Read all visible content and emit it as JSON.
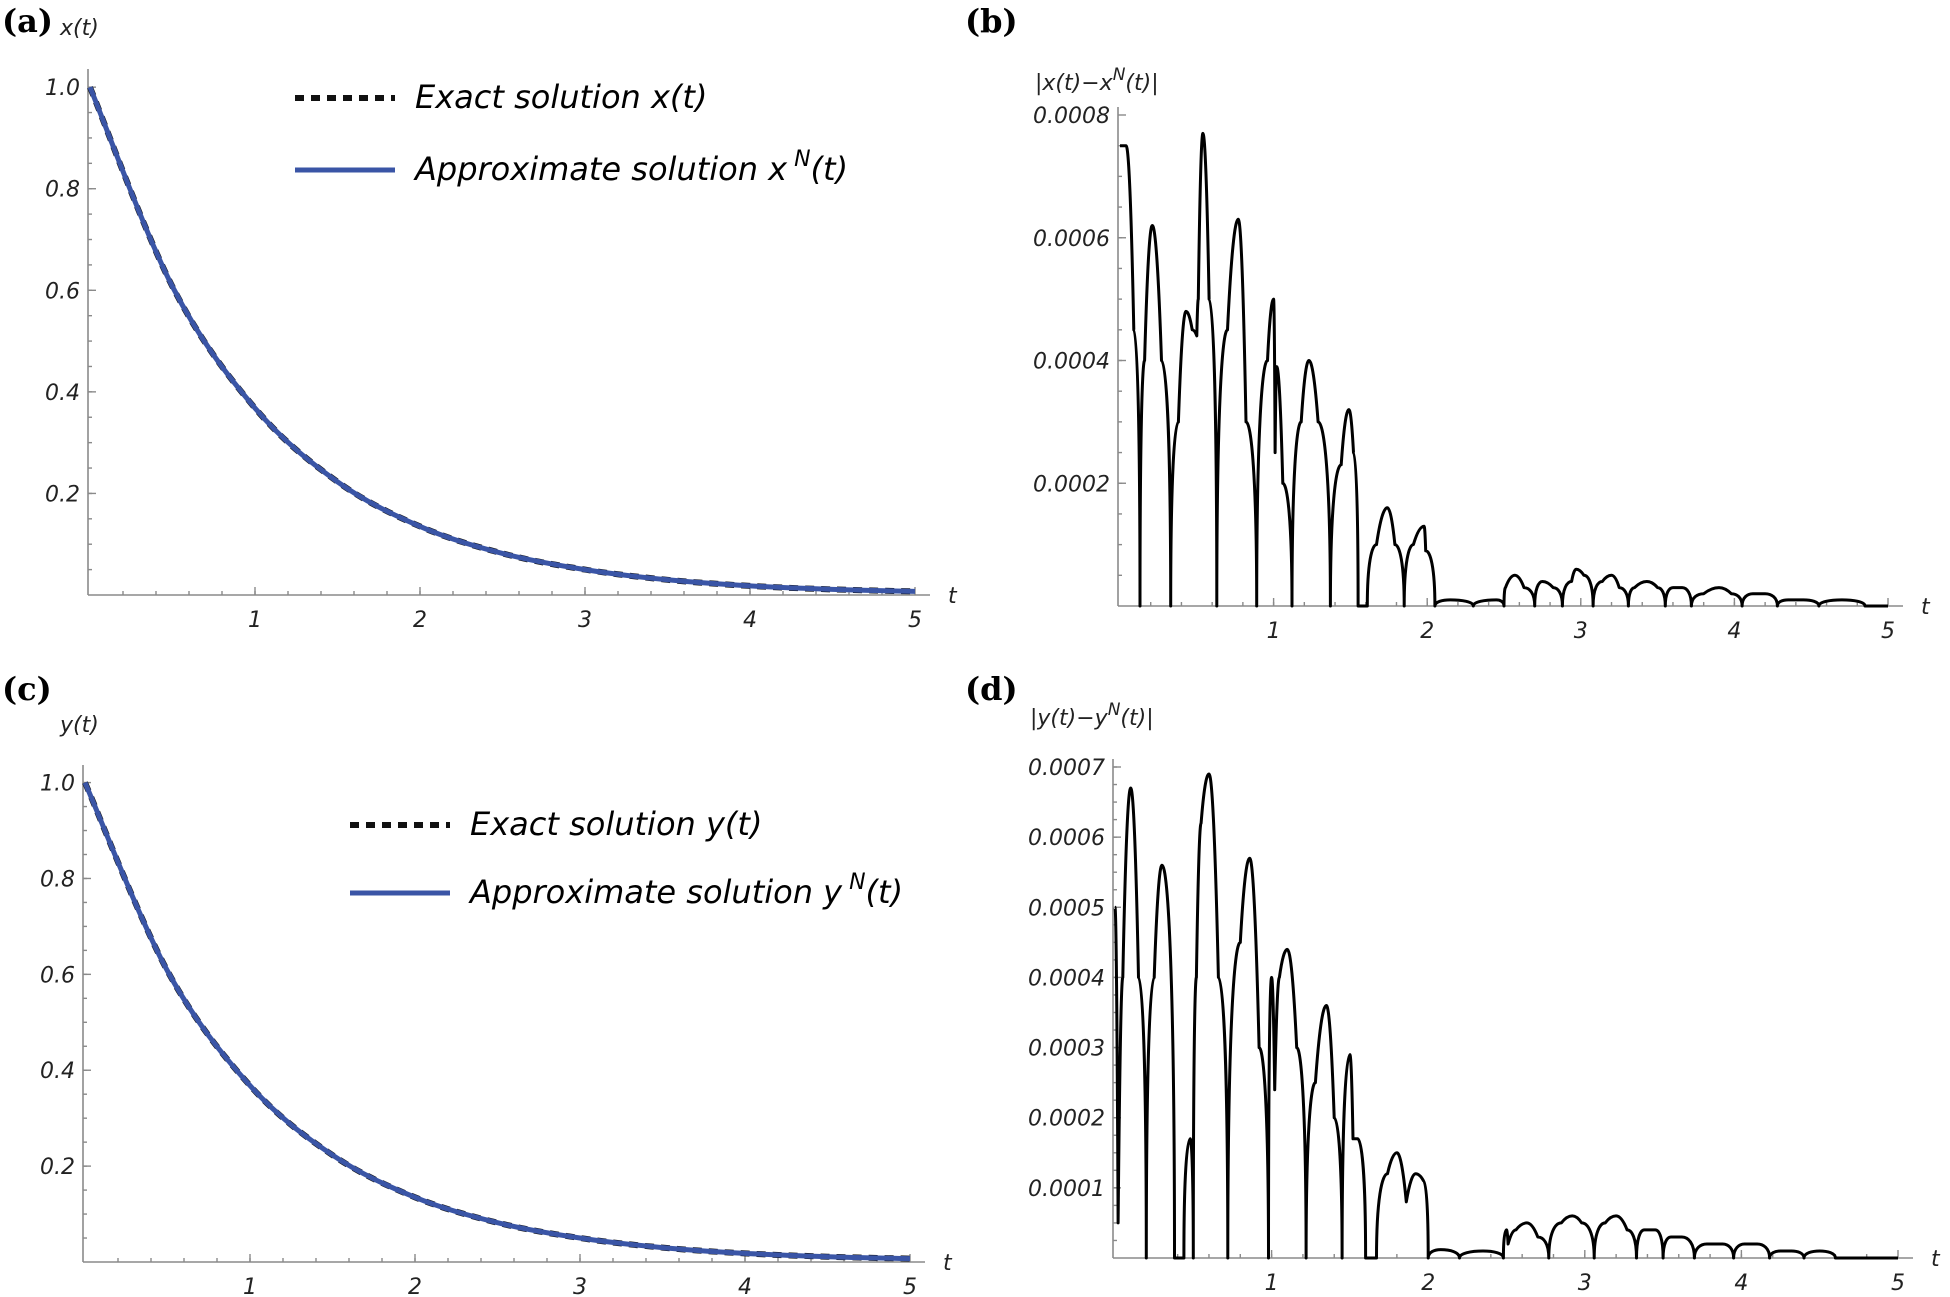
{
  "chart_data": [
    {
      "id": "a",
      "type": "line",
      "panel_label": "(a)",
      "ylabel": "x(t)",
      "xlabel": "t",
      "xlim": [
        0,
        5
      ],
      "ylim": [
        0,
        1.02
      ],
      "xticks": [
        1,
        2,
        3,
        4,
        5
      ],
      "xtick_labels": [
        "1",
        "2",
        "3",
        "4",
        "5"
      ],
      "yticks": [
        0.2,
        0.4,
        0.6,
        0.8,
        1.0
      ],
      "ytick_labels": [
        "0.2",
        "0.4",
        "0.6",
        "0.8",
        "1.0"
      ],
      "legend": [
        "Exact solution x(t)",
        "Approximate solution x^N(t)"
      ],
      "legend_parts": [
        {
          "prefix": "Exact solution x(",
          "var": "t",
          "suffix": ")",
          "sup": ""
        },
        {
          "prefix": "Approximate solution x",
          "var": "t",
          "suffix": ")",
          "sup": "N"
        }
      ],
      "series": [
        {
          "name": "Exact solution x(t)",
          "style": "dashed",
          "color": "#111111",
          "x": [
            0,
            0.5,
            1,
            1.5,
            2,
            2.5,
            3,
            3.5,
            4,
            4.5,
            5
          ],
          "y": [
            1.0,
            0.607,
            0.368,
            0.223,
            0.135,
            0.082,
            0.05,
            0.03,
            0.018,
            0.011,
            0.007
          ]
        },
        {
          "name": "Approximate solution x^N(t)",
          "style": "solid",
          "color": "#3a55a6",
          "x": [
            0,
            0.5,
            1,
            1.5,
            2,
            2.5,
            3,
            3.5,
            4,
            4.5,
            5
          ],
          "y": [
            1.0,
            0.607,
            0.368,
            0.223,
            0.135,
            0.082,
            0.05,
            0.03,
            0.018,
            0.011,
            0.007
          ]
        }
      ]
    },
    {
      "id": "b",
      "type": "line",
      "panel_label": "(b)",
      "ylabel": "|x(t)−x^N(t)|",
      "ylabel_parts": {
        "pre": "|x(t)−x",
        "sup": "N",
        "post": "(t)|"
      },
      "xlabel": "t",
      "xlim": [
        0,
        5
      ],
      "ylim": [
        0,
        0.0008
      ],
      "xticks": [
        1,
        2,
        3,
        4,
        5
      ],
      "xtick_labels": [
        "1",
        "2",
        "3",
        "4",
        "5"
      ],
      "yticks": [
        0.0002,
        0.0004,
        0.0006,
        0.0008
      ],
      "ytick_labels": [
        "0.0002",
        "0.0004",
        "0.0006",
        "0.0008"
      ],
      "series": [
        {
          "name": "|x(t)-x^N(t)|",
          "color": "#000000",
          "x": [
            0,
            0.04,
            0.09,
            0.13,
            0.16,
            0.21,
            0.27,
            0.33,
            0.38,
            0.43,
            0.47,
            0.5,
            0.51,
            0.54,
            0.58,
            0.63,
            0.7,
            0.77,
            0.82,
            0.89,
            0.96,
            1.0,
            1.01,
            1.02,
            1.06,
            1.12,
            1.18,
            1.23,
            1.29,
            1.37,
            1.44,
            1.49,
            1.52,
            1.55,
            1.61,
            1.67,
            1.74,
            1.79,
            1.85,
            1.91,
            1.98,
            1.99,
            2.05,
            2.15,
            2.3,
            2.45,
            2.5,
            2.51,
            2.57,
            2.63,
            2.7,
            2.75,
            2.82,
            2.88,
            2.94,
            2.97,
            3.02,
            3.08,
            3.14,
            3.2,
            3.25,
            3.31,
            3.35,
            3.43,
            3.5,
            3.55,
            3.6,
            3.66,
            3.72,
            3.8,
            3.9,
            3.98,
            4.05,
            4.12,
            4.2,
            4.28,
            4.35,
            4.45,
            4.55,
            4.7,
            4.85,
            5.0
          ],
          "y": [
            0.00075,
            0.00075,
            0.00045,
            0.0,
            0.0004,
            0.00062,
            0.0004,
            0.0,
            0.0003,
            0.00048,
            0.00045,
            0.00044,
            0.0005,
            0.00077,
            0.0005,
            0.0,
            0.00045,
            0.00063,
            0.0003,
            0.0,
            0.0004,
            0.0005,
            0.00025,
            0.00039,
            0.0002,
            0.0,
            0.0003,
            0.0004,
            0.0003,
            0.0,
            0.00023,
            0.00032,
            0.00025,
            0.0,
            0.0,
            0.0001,
            0.00016,
            0.0001,
            0.0,
            0.0001,
            0.00013,
            9e-05,
            0.0,
            1e-05,
            0.0,
            1e-05,
            0.0,
            3e-05,
            5e-05,
            3e-05,
            0.0,
            4e-05,
            3e-05,
            0.0,
            4e-05,
            6e-05,
            5e-05,
            0.0,
            4e-05,
            5e-05,
            3e-05,
            0.0,
            3e-05,
            4e-05,
            3e-05,
            0.0,
            3e-05,
            3e-05,
            0.0,
            2e-05,
            3e-05,
            2e-05,
            0.0,
            2e-05,
            2e-05,
            0.0,
            1e-05,
            1e-05,
            0.0,
            1e-05,
            0.0,
            0.0
          ]
        }
      ]
    },
    {
      "id": "c",
      "type": "line",
      "panel_label": "(c)",
      "ylabel": "y(t)",
      "xlabel": "t",
      "xlim": [
        0,
        5
      ],
      "ylim": [
        0,
        1.02
      ],
      "xticks": [
        1,
        2,
        3,
        4,
        5
      ],
      "xtick_labels": [
        "1",
        "2",
        "3",
        "4",
        "5"
      ],
      "yticks": [
        0.2,
        0.4,
        0.6,
        0.8,
        1.0
      ],
      "ytick_labels": [
        "0.2",
        "0.4",
        "0.6",
        "0.8",
        "1.0"
      ],
      "legend": [
        "Exact solution y(t)",
        "Approximate solution y^N(t)"
      ],
      "legend_parts": [
        {
          "prefix": "Exact solution y(",
          "var": "t",
          "suffix": ")",
          "sup": ""
        },
        {
          "prefix": "Approximate solution y",
          "var": "t",
          "suffix": ")",
          "sup": "N"
        }
      ],
      "series": [
        {
          "name": "Exact solution y(t)",
          "style": "dashed",
          "color": "#111111",
          "x": [
            0,
            0.5,
            1,
            1.5,
            2,
            2.5,
            3,
            3.5,
            4,
            4.5,
            5
          ],
          "y": [
            1.0,
            0.607,
            0.368,
            0.223,
            0.135,
            0.082,
            0.05,
            0.03,
            0.018,
            0.011,
            0.007
          ]
        },
        {
          "name": "Approximate solution y^N(t)",
          "style": "solid",
          "color": "#3a55a6",
          "x": [
            0,
            0.5,
            1,
            1.5,
            2,
            2.5,
            3,
            3.5,
            4,
            4.5,
            5
          ],
          "y": [
            1.0,
            0.607,
            0.368,
            0.223,
            0.135,
            0.082,
            0.05,
            0.03,
            0.018,
            0.011,
            0.007
          ]
        }
      ]
    },
    {
      "id": "d",
      "type": "line",
      "panel_label": "(d)",
      "ylabel": "|y(t)−y^N(t)|",
      "ylabel_parts": {
        "pre": "|y(t)−y",
        "sup": "N",
        "post": "(t)|"
      },
      "xlabel": "t",
      "xlim": [
        0,
        5
      ],
      "ylim": [
        0,
        0.0007
      ],
      "xticks": [
        1,
        2,
        3,
        4,
        5
      ],
      "xtick_labels": [
        "1",
        "2",
        "3",
        "4",
        "5"
      ],
      "yticks": [
        0.0001,
        0.0002,
        0.0003,
        0.0004,
        0.0005,
        0.0006,
        0.0007
      ],
      "ytick_labels": [
        "0.0001",
        "0.0002",
        "0.0003",
        "0.0004",
        "0.0005",
        "0.0006",
        "0.0007"
      ],
      "series": [
        {
          "name": "|y(t)-y^N(t)|",
          "color": "#000000",
          "x": [
            0,
            0.02,
            0.05,
            0.1,
            0.15,
            0.2,
            0.25,
            0.3,
            0.38,
            0.44,
            0.48,
            0.5,
            0.52,
            0.55,
            0.6,
            0.66,
            0.72,
            0.8,
            0.86,
            0.92,
            0.98,
            1.0,
            1.02,
            1.05,
            1.1,
            1.16,
            1.22,
            1.28,
            1.35,
            1.4,
            1.45,
            1.5,
            1.52,
            1.55,
            1.6,
            1.67,
            1.74,
            1.8,
            1.86,
            1.92,
            1.97,
            2.0,
            2.08,
            2.2,
            2.35,
            2.48,
            2.5,
            2.51,
            2.56,
            2.63,
            2.7,
            2.77,
            2.85,
            2.92,
            2.98,
            3.06,
            3.13,
            3.2,
            3.27,
            3.33,
            3.38,
            3.45,
            3.5,
            3.55,
            3.62,
            3.7,
            3.78,
            3.88,
            3.95,
            4.02,
            4.1,
            4.18,
            4.25,
            4.32,
            4.4,
            4.5,
            4.6,
            4.75,
            5.0
          ],
          "y": [
            0.0005,
            5e-05,
            0.0004,
            0.00067,
            0.0004,
            0.0,
            0.0004,
            0.00056,
            0.0,
            0.0,
            0.00017,
            0.0,
            0.0004,
            0.00062,
            0.00069,
            0.0004,
            0.0,
            0.00045,
            0.00057,
            0.0003,
            0.0,
            0.0004,
            0.00024,
            0.0004,
            0.00044,
            0.0003,
            0.0,
            0.00025,
            0.00036,
            0.0002,
            0.0,
            0.00029,
            0.00017,
            0.00017,
            0.0,
            0.0,
            0.00012,
            0.00015,
            8e-05,
            0.00012,
            0.00011,
            0.0,
            1.2e-05,
            0.0,
            1e-05,
            0.0,
            4e-05,
            2e-05,
            4e-05,
            5e-05,
            3e-05,
            0.0,
            5e-05,
            6e-05,
            5e-05,
            0.0,
            5e-05,
            6e-05,
            4e-05,
            0.0,
            4e-05,
            4e-05,
            0.0,
            3e-05,
            3e-05,
            0.0,
            2e-05,
            2e-05,
            0.0,
            2e-05,
            2e-05,
            0.0,
            1e-05,
            1e-05,
            0.0,
            1e-05,
            0.0,
            0.0,
            0.0
          ]
        }
      ]
    }
  ]
}
